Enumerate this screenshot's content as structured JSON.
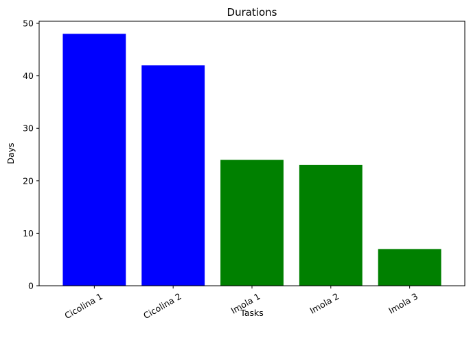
{
  "chart_data": {
    "type": "bar",
    "title": "Durations",
    "xlabel": "Tasks",
    "ylabel": "Days",
    "categories": [
      "Cicolina 1",
      "Cicolina 2",
      "Imola 1",
      "Imola 2",
      "Imola 3"
    ],
    "values": [
      48,
      42,
      24,
      23,
      7
    ],
    "bar_colors": [
      "#0000ff",
      "#0000ff",
      "#008000",
      "#008000",
      "#008000"
    ],
    "ylim": [
      0,
      50.4
    ],
    "yticks": [
      0,
      10,
      20,
      30,
      40,
      50
    ],
    "xtick_rotation": 30,
    "grid": false,
    "legend": "none"
  }
}
